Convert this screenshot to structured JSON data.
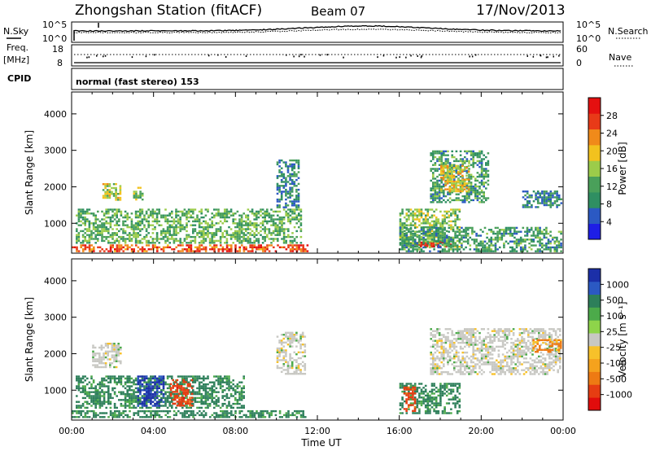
{
  "header": {
    "station": "Zhongshan Station (fitACF)",
    "beam": "Beam 07",
    "date": "17/Nov/2013"
  },
  "noise_panel": {
    "left_label": "N.Sky",
    "right_label": "N.Search",
    "left_ticks": [
      "10^5",
      "10^0"
    ],
    "right_ticks": [
      "10^5",
      "10^0"
    ]
  },
  "freq_panel": {
    "left_label_line1": "Freq.",
    "left_label_line2": "[MHz]",
    "left_ticks": [
      "18",
      "8"
    ],
    "right_label": "Nave",
    "right_ticks": [
      "60",
      "0"
    ]
  },
  "cpid": {
    "label": "CPID",
    "text": "normal (fast stereo) 153"
  },
  "x_axis": {
    "label": "Time UT",
    "ticks": [
      "00:00",
      "04:00",
      "08:00",
      "12:00",
      "16:00",
      "20:00",
      "00:00"
    ]
  },
  "colors": {
    "power": [
      "#1e1ee6",
      "#2b59c3",
      "#2f8f62",
      "#4aa05a",
      "#9ccc4a",
      "#f2c21e",
      "#f08a1a",
      "#e83a18",
      "#e41010"
    ],
    "velocity_pos": [
      "#1b2fa8",
      "#2b59c3",
      "#2d7f5a",
      "#4caa4a",
      "#8ed44a"
    ],
    "velocity_neutral": "#c8c8c3",
    "velocity_neg": [
      "#f7c12a",
      "#f5a21d",
      "#ee7a13",
      "#e63d12",
      "#e10c0c"
    ]
  },
  "chart_data": [
    {
      "type": "heatmap",
      "title": "",
      "xlabel": "Time UT",
      "ylabel": "Slant Range [km]",
      "x_range": [
        "00:00",
        "24:00"
      ],
      "ylim": [
        180,
        4600
      ],
      "yticks": [
        "1000",
        "2000",
        "3000",
        "4000"
      ],
      "colorbar": {
        "label": "Power [dB]",
        "ticks": [
          "4",
          "8",
          "12",
          "16",
          "20",
          "24",
          "28"
        ],
        "range": [
          0,
          30
        ]
      },
      "regions": [
        {
          "t_start": 0.0,
          "t_end": 11.6,
          "r_start": 200,
          "r_end": 420,
          "level": 24
        },
        {
          "t_start": 0.2,
          "t_end": 11.3,
          "r_start": 420,
          "r_end": 1400,
          "level": 12
        },
        {
          "t_start": 1.5,
          "t_end": 2.5,
          "r_start": 1600,
          "r_end": 2100,
          "level": 16
        },
        {
          "t_start": 3.0,
          "t_end": 3.6,
          "r_start": 1600,
          "r_end": 2000,
          "level": 14
        },
        {
          "t_start": 10.0,
          "t_end": 11.2,
          "r_start": 1400,
          "r_end": 2750,
          "level": 8
        },
        {
          "t_start": 16.0,
          "t_end": 19.0,
          "r_start": 300,
          "r_end": 1400,
          "level": 14
        },
        {
          "t_start": 16.8,
          "t_end": 18.6,
          "r_start": 300,
          "r_end": 500,
          "level": 28
        },
        {
          "t_start": 17.5,
          "t_end": 20.4,
          "r_start": 1500,
          "r_end": 3000,
          "level": 10
        },
        {
          "t_start": 18.0,
          "t_end": 19.5,
          "r_start": 1800,
          "r_end": 2600,
          "level": 18
        },
        {
          "t_start": 16.0,
          "t_end": 24.0,
          "r_start": 200,
          "r_end": 900,
          "level": 10
        },
        {
          "t_start": 22.0,
          "t_end": 24.0,
          "r_start": 1400,
          "r_end": 1900,
          "level": 8
        }
      ]
    },
    {
      "type": "heatmap",
      "title": "",
      "xlabel": "Time UT",
      "ylabel": "Slant Range [km]",
      "x_range": [
        "00:00",
        "24:00"
      ],
      "ylim": [
        180,
        4600
      ],
      "yticks": [
        "1000",
        "2000",
        "3000",
        "4000"
      ],
      "colorbar": {
        "label": "Velocity [m s⁻¹]",
        "ticks": [
          "1000",
          "500",
          "100",
          "25",
          "-25",
          "-100",
          "-500",
          "-1000"
        ],
        "range": [
          -1000,
          1000
        ]
      },
      "regions": [
        {
          "t_start": 0.0,
          "t_end": 11.6,
          "r_start": 200,
          "r_end": 450,
          "level": 100
        },
        {
          "t_start": 0.2,
          "t_end": 8.5,
          "r_start": 450,
          "r_end": 1400,
          "level": 100
        },
        {
          "t_start": 4.8,
          "t_end": 6.0,
          "r_start": 500,
          "r_end": 1300,
          "level": -500
        },
        {
          "t_start": 3.2,
          "t_end": 4.6,
          "r_start": 500,
          "r_end": 1400,
          "level": 1000
        },
        {
          "t_start": 1.0,
          "t_end": 2.5,
          "r_start": 1600,
          "r_end": 2300,
          "level": 0
        },
        {
          "t_start": 10.0,
          "t_end": 11.5,
          "r_start": 1400,
          "r_end": 2600,
          "level": 0
        },
        {
          "t_start": 16.0,
          "t_end": 19.0,
          "r_start": 300,
          "r_end": 1200,
          "level": 100
        },
        {
          "t_start": 16.2,
          "t_end": 16.9,
          "r_start": 400,
          "r_end": 1100,
          "level": -500
        },
        {
          "t_start": 17.5,
          "t_end": 24.0,
          "r_start": 1400,
          "r_end": 2700,
          "level": 0
        },
        {
          "t_start": 22.5,
          "t_end": 24.0,
          "r_start": 2000,
          "r_end": 2400,
          "level": -100
        }
      ]
    }
  ]
}
